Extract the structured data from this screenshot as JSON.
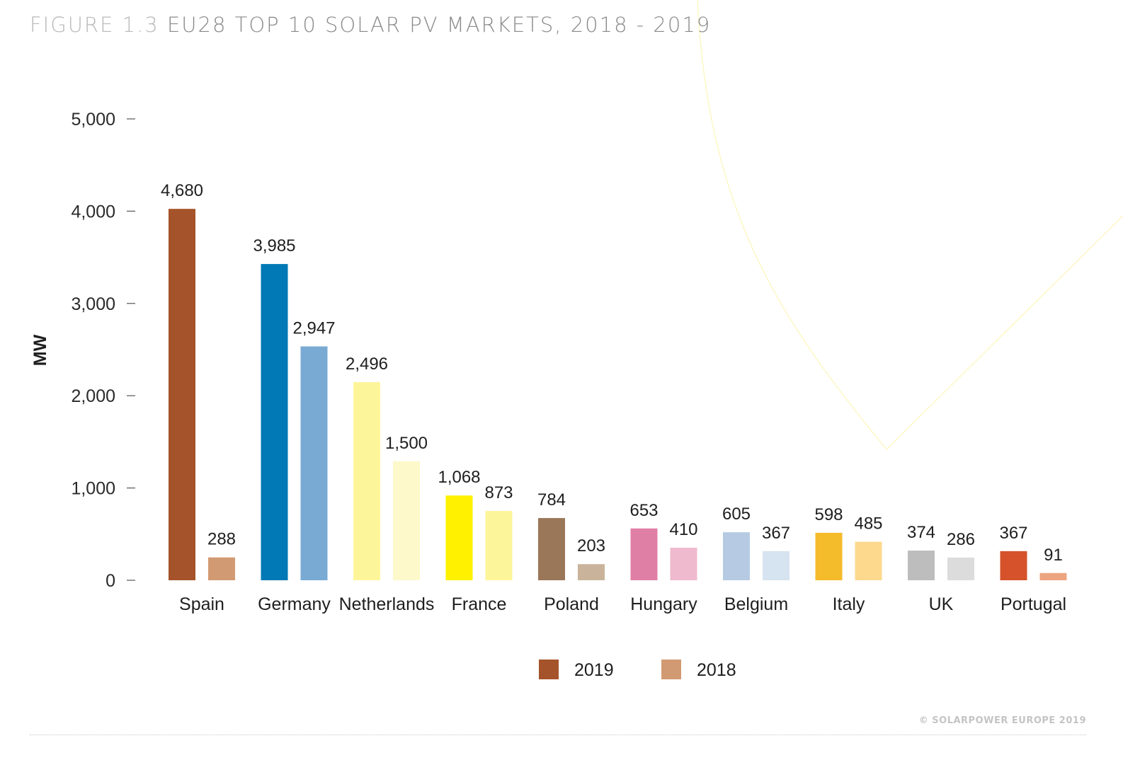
{
  "page": {
    "figure_label": "FIGURE 1.3",
    "title": "EU28 TOP 10 SOLAR PV MARKETS, 2018 - 2019",
    "copyright": "© SOLARPOWER EUROPE 2019"
  },
  "chart_data": {
    "type": "bar",
    "title": "EU28 TOP 10 SOLAR PV MARKETS, 2018 - 2019",
    "xlabel": "",
    "ylabel": "MW",
    "ylim": [
      0,
      5000
    ],
    "yticks": [
      0,
      1000,
      2000,
      3000,
      4000,
      5000
    ],
    "ytick_labels": [
      "0",
      "1,000",
      "2,000",
      "3,000",
      "4,000",
      "5,000"
    ],
    "grid": false,
    "legend_position": "bottom-center",
    "categories": [
      "Spain",
      "Germany",
      "Netherlands",
      "France",
      "Poland",
      "Hungary",
      "Belgium",
      "Italy",
      "UK",
      "Portugal"
    ],
    "series": [
      {
        "name": "2019",
        "legend_color": "#a5532a",
        "values": [
          4680,
          3985,
          2496,
          1068,
          784,
          653,
          605,
          598,
          374,
          367
        ],
        "labels": [
          "4,680",
          "3,985",
          "2,496",
          "1,068",
          "784",
          "653",
          "605",
          "598",
          "374",
          "367"
        ],
        "colors": [
          "#a5532a",
          "#0079b6",
          "#fdf59a",
          "#fff100",
          "#9a7759",
          "#e07fa6",
          "#b6cbe3",
          "#f4bb2b",
          "#bdbdbd",
          "#d5522a"
        ]
      },
      {
        "name": "2018",
        "legend_color": "#d29a72",
        "values": [
          288,
          2947,
          1500,
          873,
          203,
          410,
          367,
          485,
          286,
          91
        ],
        "labels": [
          "288",
          "2,947",
          "1,500",
          "873",
          "203",
          "410",
          "367",
          "485",
          "286",
          "91"
        ],
        "colors": [
          "#d29a72",
          "#79aad3",
          "#fef9ca",
          "#fdf59a",
          "#c9b49b",
          "#efbace",
          "#d6e3f0",
          "#fdd98e",
          "#dcdcdc",
          "#eda57f"
        ]
      }
    ]
  }
}
